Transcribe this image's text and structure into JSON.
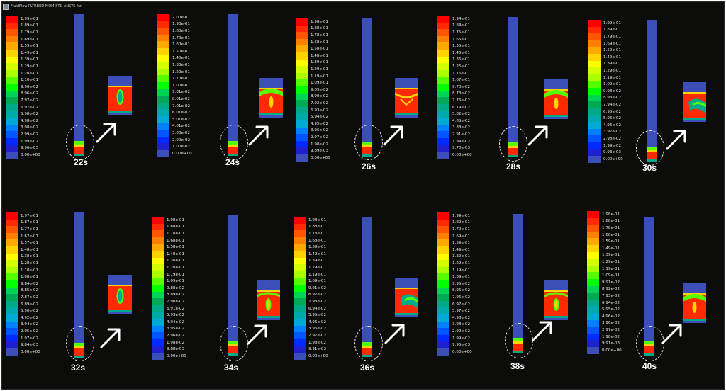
{
  "window_title": "FluidFlow PLTRBED-MOM-STD ANSYS for",
  "colormap": [
    "#ff0000",
    "#ff2a00",
    "#ff5500",
    "#ff8000",
    "#ffaa00",
    "#ffd400",
    "#ffff00",
    "#d4ff00",
    "#aaff00",
    "#55ff00",
    "#00ff00",
    "#00d455",
    "#00aa55",
    "#00aa88",
    "#00aaaa",
    "#00aad4",
    "#0080ff",
    "#0055ff",
    "#002aff",
    "#2020d0",
    "#3c4fb8"
  ],
  "panels": [
    {
      "time": "22s",
      "legend": [
        "1.99e-01",
        "1.89e-01",
        "1.79e-01",
        "1.69e-01",
        "1.59e-01",
        "1.49e-01",
        "1.39e-01",
        "1.29e-01",
        "1.20e-01",
        "1.10e-01",
        "9.96e-02",
        "8.96e-02",
        "7.97e-02",
        "6.97e-02",
        "5.98e-02",
        "4.98e-02",
        "3.98e-02",
        "2.99e-02",
        "1.99e-02",
        "9.96e-03",
        "0.00e+00"
      ]
    },
    {
      "time": "24s",
      "legend": [
        "2.00e-01",
        "1.90e-01",
        "1.80e-01",
        "1.70e-01",
        "1.60e-01",
        "1.50e-01",
        "1.40e-01",
        "1.30e-01",
        "1.20e-01",
        "1.10e-01",
        "1.00e-01",
        "9.01e-02",
        "8.01e-02",
        "7.01e-02",
        "6.01e-02",
        "5.01e-02",
        "4.01e-02",
        "3.00e-02",
        "2.00e-02",
        "1.00e-02",
        "0.00e+00"
      ]
    },
    {
      "time": "26s",
      "legend": [
        "1.98e-01",
        "1.88e-01",
        "1.78e-01",
        "1.68e-01",
        "1.58e-01",
        "1.48e-01",
        "1.39e-01",
        "1.29e-01",
        "1.19e-01",
        "1.09e-01",
        "9.89e-02",
        "8.90e-02",
        "7.92e-02",
        "6.93e-02",
        "5.94e-02",
        "4.95e-02",
        "3.96e-02",
        "2.97e-02",
        "1.98e-02",
        "9.89e-03",
        "0.00e+00"
      ]
    },
    {
      "time": "28s",
      "legend": [
        "1.94e-01",
        "1.84e-01",
        "1.75e-01",
        "1.65e-01",
        "1.55e-01",
        "1.45e-01",
        "1.36e-01",
        "1.26e-01",
        "1.16e-01",
        "1.07e-01",
        "9.70e-02",
        "8.73e-02",
        "7.76e-02",
        "6.79e-02",
        "5.82e-02",
        "4.85e-02",
        "3.88e-02",
        "2.91e-02",
        "1.94e-02",
        "9.70e-03",
        "0.00e+00"
      ]
    },
    {
      "time": "30s",
      "legend": [
        "1.99e-01",
        "1.89e-01",
        "1.79e-01",
        "1.69e-01",
        "1.59e-01",
        "1.49e-01",
        "1.39e-01",
        "1.29e-01",
        "1.19e-01",
        "1.09e-01",
        "9.93e-02",
        "8.93e-02",
        "7.94e-02",
        "6.95e-02",
        "5.96e-02",
        "4.96e-02",
        "3.97e-02",
        "2.98e-02",
        "1.99e-02",
        "9.93e-03",
        "0.00e+00"
      ]
    },
    {
      "time": "32s",
      "legend": [
        "1.97e-01",
        "1.87e-01",
        "1.77e-01",
        "1.67e-01",
        "1.57e-01",
        "1.48e-01",
        "1.38e-01",
        "1.28e-01",
        "1.18e-01",
        "1.08e-01",
        "9.84e-02",
        "8.85e-02",
        "7.87e-02",
        "6.89e-02",
        "5.90e-02",
        "4.92e-02",
        "3.94e-02",
        "2.95e-02",
        "1.97e-02",
        "9.84e-03",
        "0.00e+00"
      ]
    },
    {
      "time": "34s",
      "legend": [
        "1.98e-01",
        "1.88e-01",
        "1.78e-01",
        "1.68e-01",
        "1.58e-01",
        "1.48e-01",
        "1.38e-01",
        "1.28e-01",
        "1.19e-01",
        "1.09e-01",
        "9.88e-02",
        "8.89e-02",
        "7.90e-02",
        "6.91e-02",
        "5.93e-02",
        "4.94e-02",
        "3.95e-02",
        "2.96e-02",
        "1.98e-02",
        "9.88e-03",
        "0.00e+00"
      ]
    },
    {
      "time": "36s",
      "legend": [
        "1.98e-01",
        "1.88e-01",
        "1.78e-01",
        "1.68e-01",
        "1.59e-01",
        "1.49e-01",
        "1.39e-01",
        "1.29e-01",
        "1.19e-01",
        "1.09e-01",
        "9.91e-02",
        "8.92e-02",
        "7.93e-02",
        "6.94e-02",
        "5.95e-02",
        "4.96e-02",
        "3.96e-02",
        "2.97e-02",
        "1.98e-02",
        "9.91e-03",
        "0.00e+00"
      ]
    },
    {
      "time": "38s",
      "legend": [
        "1.99e-01",
        "1.89e-01",
        "1.79e-01",
        "1.69e-01",
        "1.59e-01",
        "1.49e-01",
        "1.39e-01",
        "1.29e-01",
        "1.19e-01",
        "1.09e-01",
        "9.95e-02",
        "8.96e-02",
        "7.96e-02",
        "6.97e-02",
        "5.97e-02",
        "4.98e-02",
        "3.98e-02",
        "2.99e-02",
        "1.99e-02",
        "9.95e-03",
        "0.00e+00"
      ]
    },
    {
      "time": "40s",
      "legend": [
        "1.98e-01",
        "1.88e-01",
        "1.78e-01",
        "1.68e-01",
        "1.59e-01",
        "1.49e-01",
        "1.39e-01",
        "1.29e-01",
        "1.19e-01",
        "1.09e-01",
        "9.91e-02",
        "8.92e-02",
        "7.93e-02",
        "6.94e-02",
        "5.95e-02",
        "4.96e-02",
        "3.96e-02",
        "2.97e-02",
        "1.98e-02",
        "9.91e-03",
        "0.00e+00"
      ]
    }
  ]
}
